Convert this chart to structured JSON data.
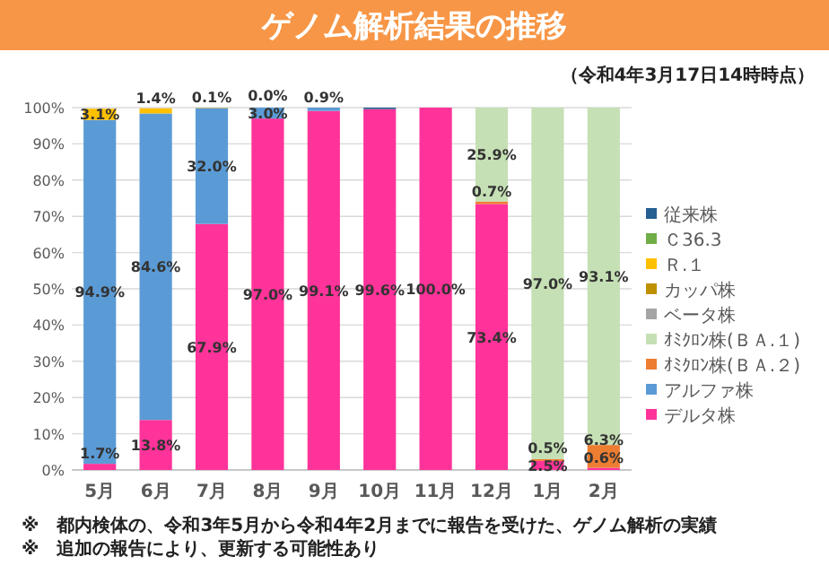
{
  "chart_data": {
    "type": "bar",
    "stacked": true,
    "title": "ゲノム解析結果の推移",
    "subtitle": "（令和4年3月17日14時時点）",
    "annotations": [
      "※　都内検体の、令和3年5月から令和4年2月までに報告を受けた、ゲノム解析の実績",
      "※　追加の報告により、更新する可能性あり"
    ],
    "categories": [
      "5月",
      "6月",
      "7月",
      "8月",
      "9月",
      "10月",
      "11月",
      "12月",
      "1月",
      "2月"
    ],
    "ylim": [
      0,
      100
    ],
    "yticks": [
      {
        "value": 0,
        "label": "0%"
      },
      {
        "value": 10,
        "label": "10%"
      },
      {
        "value": 20,
        "label": "20%"
      },
      {
        "value": 30,
        "label": "30%"
      },
      {
        "value": 40,
        "label": "40%"
      },
      {
        "value": 50,
        "label": "50%"
      },
      {
        "value": 60,
        "label": "60%"
      },
      {
        "value": 70,
        "label": "70%"
      },
      {
        "value": 80,
        "label": "80%"
      },
      {
        "value": 90,
        "label": "90%"
      },
      {
        "value": 100,
        "label": "100%"
      }
    ],
    "grid": "y",
    "legend": "right",
    "series": [
      {
        "name": "デルタ株",
        "color": "#ff3399",
        "values": [
          1.7,
          13.8,
          67.9,
          97.0,
          99.1,
          99.6,
          100.0,
          73.4,
          2.5,
          0.6
        ],
        "value_labels": [
          "1.7%",
          "13.8%",
          "67.9%",
          "97.0%",
          "99.1%",
          "99.6%",
          "100.0%",
          "73.4%",
          "2.5%",
          "0.6%"
        ]
      },
      {
        "name": "アルファ株",
        "color": "#5b9bd5",
        "values": [
          94.9,
          84.6,
          32.0,
          3.0,
          0.9,
          null,
          null,
          null,
          null,
          null
        ],
        "value_labels": [
          "94.9%",
          "84.6%",
          "32.0%",
          "3.0%",
          "0.9%",
          null,
          null,
          null,
          null,
          null
        ]
      },
      {
        "name": "ｵﾐｸﾛﾝ株(ＢＡ.２)",
        "color": "#ed7d31",
        "values": [
          null,
          null,
          null,
          null,
          null,
          null,
          null,
          0.7,
          0.5,
          6.3
        ],
        "value_labels": [
          null,
          null,
          null,
          null,
          null,
          null,
          null,
          "0.7%",
          "0.5%",
          "6.3%"
        ]
      },
      {
        "name": "ｵﾐｸﾛﾝ株(ＢＡ.１)",
        "color": "#c5e0b4",
        "values": [
          null,
          null,
          null,
          null,
          null,
          null,
          null,
          25.9,
          97.0,
          93.1
        ],
        "value_labels": [
          null,
          null,
          null,
          null,
          null,
          null,
          null,
          "25.9%",
          "97.0%",
          "93.1%"
        ]
      },
      {
        "name": "ベータ株",
        "color": "#a5a5a5",
        "values": [
          null,
          null,
          null,
          null,
          null,
          null,
          null,
          null,
          null,
          null
        ]
      },
      {
        "name": "カッパ株",
        "color": "#bf9000",
        "values": [
          null,
          null,
          null,
          null,
          null,
          null,
          null,
          null,
          null,
          null
        ]
      },
      {
        "name": "Ｒ.１",
        "color": "#ffc000",
        "values": [
          3.1,
          1.4,
          0.1,
          0.0,
          null,
          null,
          null,
          null,
          null,
          null
        ],
        "value_labels": [
          "3.1%",
          "1.4%",
          "0.1%",
          "0.0%",
          null,
          null,
          null,
          null,
          null,
          null
        ]
      },
      {
        "name": "Ｃ36.3",
        "color": "#70ad47",
        "values": [
          null,
          null,
          null,
          null,
          null,
          null,
          null,
          null,
          null,
          null
        ]
      },
      {
        "name": "従来株",
        "color": "#255e91",
        "values": [
          null,
          null,
          null,
          null,
          null,
          0.4,
          null,
          null,
          null,
          null
        ]
      }
    ]
  }
}
